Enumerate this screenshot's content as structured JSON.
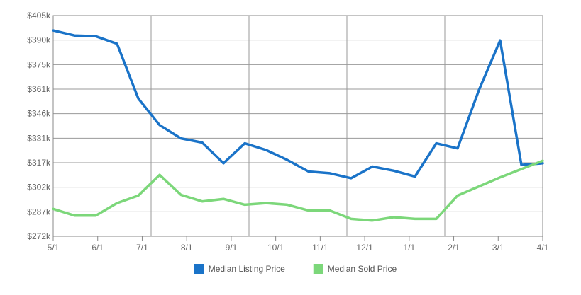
{
  "chart_data": {
    "type": "line",
    "title": "",
    "xlabel": "",
    "ylabel": "",
    "x_tick_labels": [
      "5/1",
      "6/1",
      "7/1",
      "8/1",
      "9/1",
      "10/1",
      "11/1",
      "12/1",
      "1/1",
      "2/1",
      "3/1",
      "4/1"
    ],
    "y_tick_labels": [
      "$405k",
      "$390k",
      "$375k",
      "$361k",
      "$346k",
      "$331k",
      "$317k",
      "$302k",
      "$287k",
      "$272k"
    ],
    "ylim": [
      272,
      405
    ],
    "y_unit": "$k",
    "grid": true,
    "legend_position": "bottom",
    "x_point_count": 24,
    "series": [
      {
        "name": "Median Listing Price",
        "color": "#1a73c8",
        "values": [
          396,
          393,
          392.5,
          388,
          355,
          339,
          331,
          328.5,
          316,
          328,
          324,
          318,
          311,
          310,
          307,
          314,
          311.5,
          308,
          328,
          325,
          360,
          390,
          315,
          316
        ]
      },
      {
        "name": "Median Sold Price",
        "color": "#7cd77a",
        "values": [
          288.5,
          284.5,
          284.5,
          292,
          296.5,
          309,
          297,
          293,
          294.5,
          291,
          292,
          291,
          287.5,
          287.5,
          282.5,
          281.5,
          283.5,
          282.5,
          282.5,
          296.5,
          302,
          307.5,
          312.5,
          317.5
        ]
      }
    ]
  }
}
